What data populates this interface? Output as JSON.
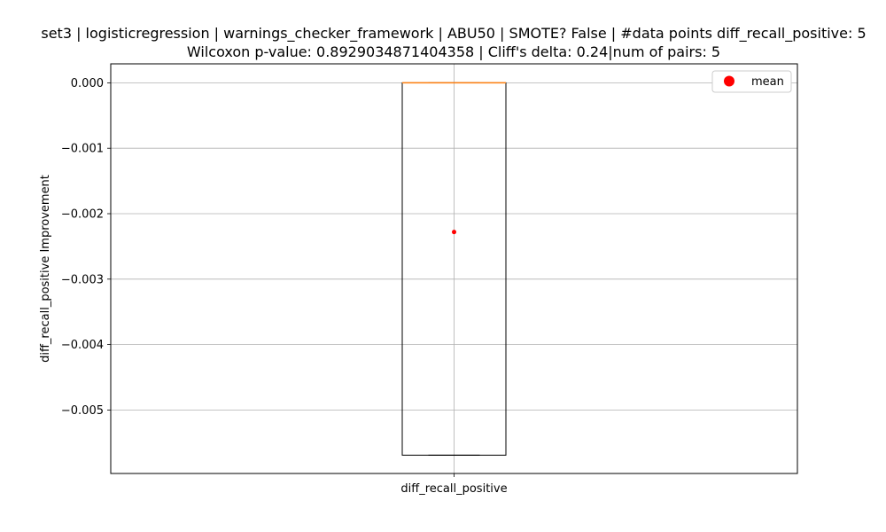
{
  "chart_data": {
    "type": "box",
    "title_lines": [
      "set3 | logisticregression | warnings_checker_framework | ABU50 | SMOTE? False | #data points diff_recall_positive: 5",
      "Wilcoxon p-value: 0.8929034871404358 | Cliff's delta: 0.24|num of pairs: 5"
    ],
    "ylabel": "diff_recall_positive Improvement",
    "ylim": [
      -0.00597,
      0.00029
    ],
    "yticks": [
      0.0,
      -0.001,
      -0.002,
      -0.003,
      -0.004,
      -0.005
    ],
    "ytick_labels": [
      "0.000",
      "−0.001",
      "−0.002",
      "−0.003",
      "−0.004",
      "−0.005"
    ],
    "grid": true,
    "categories": [
      "diff_recall_positive"
    ],
    "box": {
      "min": -0.00569,
      "q1": -0.00569,
      "median": 0.0,
      "q3": 0.0,
      "max": 0.0,
      "mean": -0.00228
    },
    "legend": {
      "position": "top-right",
      "entries": [
        {
          "label": "mean",
          "color": "#ff0000",
          "marker": "circle"
        }
      ]
    },
    "colors": {
      "box_edge": "#000000",
      "median": "#ff7f0e",
      "mean": "#ff0000",
      "grid": "#b0b0b0"
    }
  }
}
